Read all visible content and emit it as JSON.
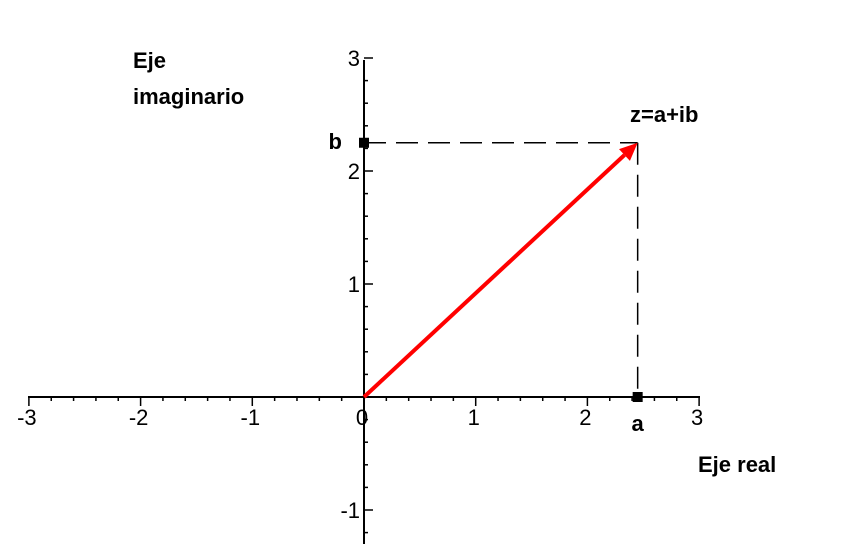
{
  "chart_data": {
    "type": "scatter",
    "title": "",
    "xlabel": "Eje real",
    "ylabel_lines": [
      "Eje",
      "imaginario"
    ],
    "xlim": [
      -3,
      3
    ],
    "ylim": [
      -1,
      3
    ],
    "x_ticks": [
      "-3",
      "-2",
      "-1",
      "0",
      "1",
      "2",
      "3"
    ],
    "y_ticks": [
      "-1",
      "1",
      "2",
      "3"
    ],
    "grid": false,
    "vector": {
      "from": [
        0,
        0
      ],
      "to": [
        2.45,
        2.25
      ],
      "color": "#ff0000"
    },
    "projection_lines": {
      "style": "dashed",
      "color": "#000000"
    },
    "markers": [
      {
        "x": 2.45,
        "y": 0,
        "label": "a"
      },
      {
        "x": 0,
        "y": 2.25,
        "label": "b"
      }
    ],
    "point_label": "z=a+ib"
  }
}
